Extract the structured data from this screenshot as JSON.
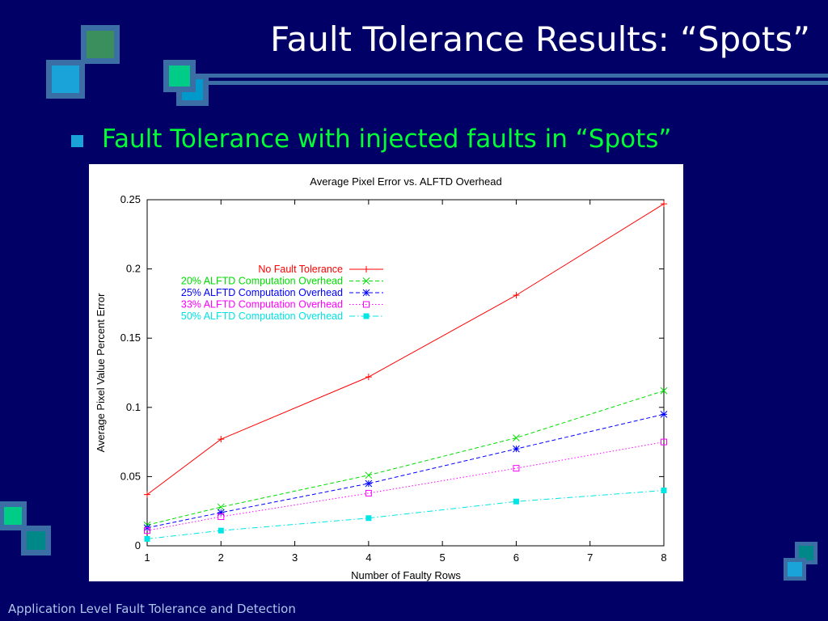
{
  "slide": {
    "title": "Fault Tolerance Results: “Spots”",
    "bullet": "Fault Tolerance with injected faults in “Spots”",
    "footer": "Application Level Fault Tolerance and Detection"
  },
  "colors": {
    "background": "#000066",
    "bullet_text": "#00ff33",
    "bullet_marker": "#1aa3d9",
    "title_rule": "#3b6ea5",
    "footer_text": "#aec6ea"
  },
  "decor": {
    "squares": [
      "#3b6ea5",
      "#1aa3d9",
      "#3b8f5c",
      "#00cc88",
      "#0099cc",
      "#008888"
    ]
  },
  "chart_data": {
    "type": "line",
    "title": "Average Pixel Error vs. ALFTD Overhead",
    "xlabel": "Number of Faulty Rows",
    "ylabel": "Average Pixel Value Percent Error",
    "xlim": [
      1,
      8
    ],
    "ylim": [
      0,
      0.25
    ],
    "x_ticks": [
      "1",
      "2",
      "3",
      "4",
      "5",
      "6",
      "7",
      "8"
    ],
    "y_ticks": [
      "0",
      "0.05",
      "0.1",
      "0.15",
      "0.2",
      "0.25"
    ],
    "grid": false,
    "legend_position": "top-left",
    "x": [
      1,
      2,
      4,
      6,
      8
    ],
    "series": [
      {
        "name": "No Fault Tolerance",
        "color": "#ff0000",
        "marker": "plus",
        "dash": "solid",
        "values": [
          0.037,
          0.077,
          0.122,
          0.181,
          0.247
        ]
      },
      {
        "name": "20% ALFTD Computation Overhead",
        "color": "#00dd00",
        "marker": "cross",
        "dash": "dashed",
        "values": [
          0.015,
          0.028,
          0.051,
          0.078,
          0.112
        ]
      },
      {
        "name": "25% ALFTD Computation Overhead",
        "color": "#0000ff",
        "marker": "star",
        "dash": "dashed",
        "values": [
          0.013,
          0.024,
          0.045,
          0.07,
          0.095
        ]
      },
      {
        "name": "33% ALFTD Computation Overhead",
        "color": "#ff00ff",
        "marker": "open-square",
        "dash": "dotted",
        "values": [
          0.011,
          0.021,
          0.038,
          0.056,
          0.075
        ]
      },
      {
        "name": "50% ALFTD Computation Overhead",
        "color": "#00e5e5",
        "marker": "filled-square",
        "dash": "dashdot",
        "values": [
          0.005,
          0.011,
          0.02,
          0.032,
          0.04
        ]
      }
    ]
  }
}
